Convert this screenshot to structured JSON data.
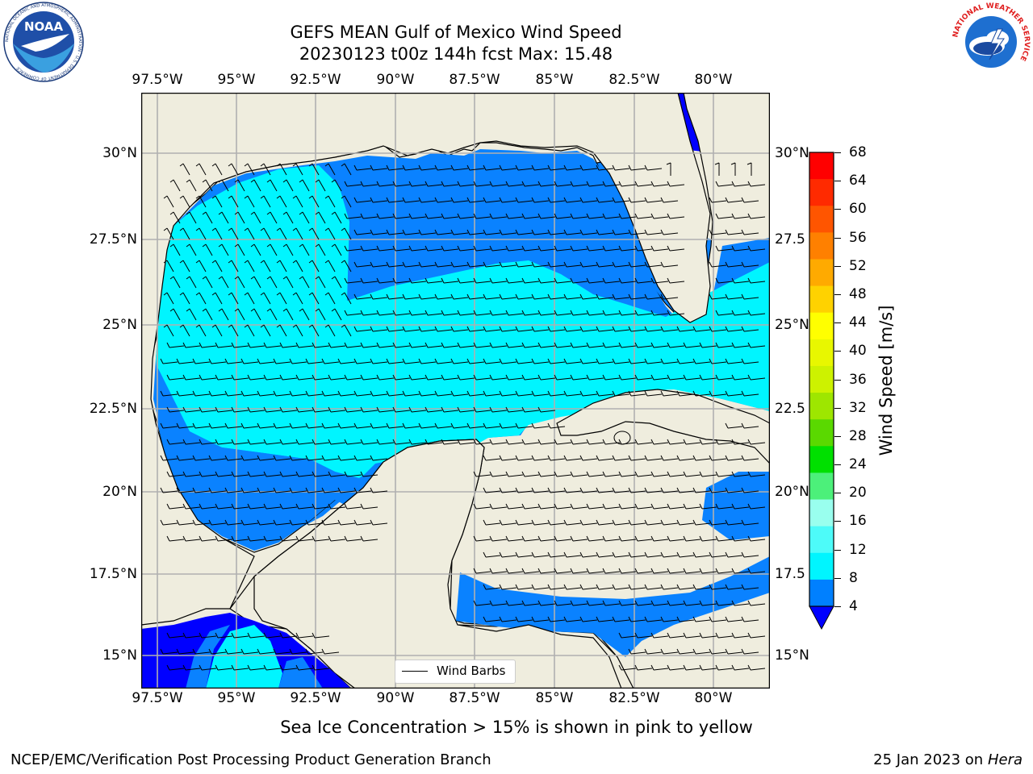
{
  "title": {
    "line1": "GEFS MEAN Gulf of Mexico Wind Speed",
    "line2": "20230123 t00z 144h fcst   Max: 15.48"
  },
  "axes": {
    "lon_labels": [
      "97.5°W",
      "95°W",
      "92.5°W",
      "90°W",
      "87.5°W",
      "85°W",
      "82.5°W",
      "80°W"
    ],
    "lat_labels_left": [
      "30°N",
      "27.5°N",
      "25°N",
      "22.5°N",
      "20°N",
      "17.5°N",
      "15°N"
    ],
    "lat_labels_right": [
      "30°N",
      "27.5",
      "25°N",
      "22.5",
      "20°N",
      "17.5",
      "15°N"
    ]
  },
  "colorbar": {
    "label": "Wind Speed [m/s]",
    "ticks": [
      "68",
      "64",
      "60",
      "56",
      "52",
      "48",
      "44",
      "40",
      "36",
      "32",
      "28",
      "24",
      "20",
      "16",
      "12",
      "8",
      "4"
    ],
    "colors": [
      "#ff0000",
      "#ff2a00",
      "#ff5500",
      "#ff8000",
      "#ffaa00",
      "#ffd200",
      "#ffff00",
      "#e8f700",
      "#cdf200",
      "#9ee600",
      "#5ad900",
      "#00e000",
      "#4cf07a",
      "#99ffee",
      "#4dfbf9",
      "#00f5ff",
      "#0080ff"
    ],
    "extend_color": "#0000ff"
  },
  "legend": {
    "label": "Wind Barbs"
  },
  "note": "Sea Ice Concentration > 15% is shown in pink to yellow",
  "footer": {
    "left": "NCEP/EMC/Verification Post Processing Product Generation Branch",
    "right_date": "25 Jan 2023 on ",
    "right_host": "Hera"
  },
  "logos": {
    "noaa": "NOAA",
    "noaa_ring": "NATIONAL OCEANIC AND ATMOSPHERIC ADMINISTRATION · U.S. DEPARTMENT OF COMMERCE",
    "nws_ring": "NATIONAL WEATHER SERVICE"
  },
  "map_colors": {
    "land": "#efedde",
    "cyan": "#00f5ff",
    "light_blue": "#0a82ff",
    "dark_blue": "#0000ff",
    "grid": "#b0b0b0"
  }
}
